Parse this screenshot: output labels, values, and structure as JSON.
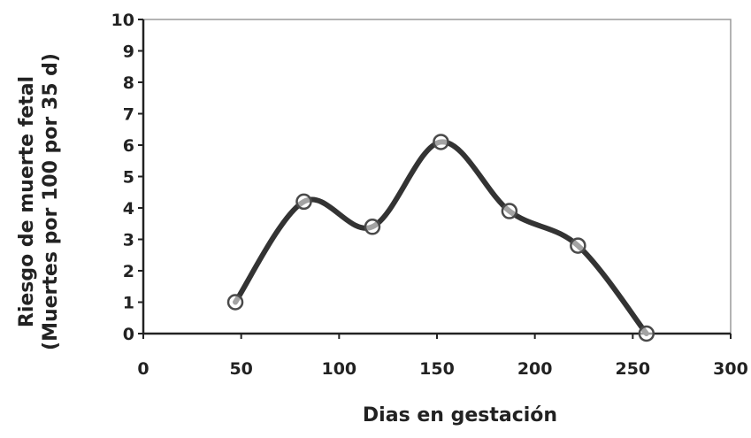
{
  "chart_data": {
    "type": "line",
    "title": "",
    "xlabel": "Dias en gestación",
    "ylabel_lines": [
      "Riesgo de muerte fetal",
      "(Muertes por 100 por 35 d)"
    ],
    "xlim": [
      0,
      300
    ],
    "ylim": [
      0,
      10
    ],
    "x_ticks": [
      0,
      50,
      100,
      150,
      200,
      250,
      300
    ],
    "y_ticks": [
      0,
      1,
      2,
      3,
      4,
      5,
      6,
      7,
      8,
      9,
      10
    ],
    "grid": false,
    "legend": "none",
    "smooth": true,
    "series": [
      {
        "x": [
          47,
          82,
          117,
          152,
          187,
          222,
          257
        ],
        "y": [
          1.0,
          4.2,
          3.4,
          6.1,
          3.9,
          2.8,
          0.0
        ]
      }
    ]
  },
  "colors": {
    "line": "#333333",
    "marker_stroke": "#4a4a4a",
    "marker_fill": "#ffffff",
    "axis": "#222222",
    "text": "#222222"
  }
}
